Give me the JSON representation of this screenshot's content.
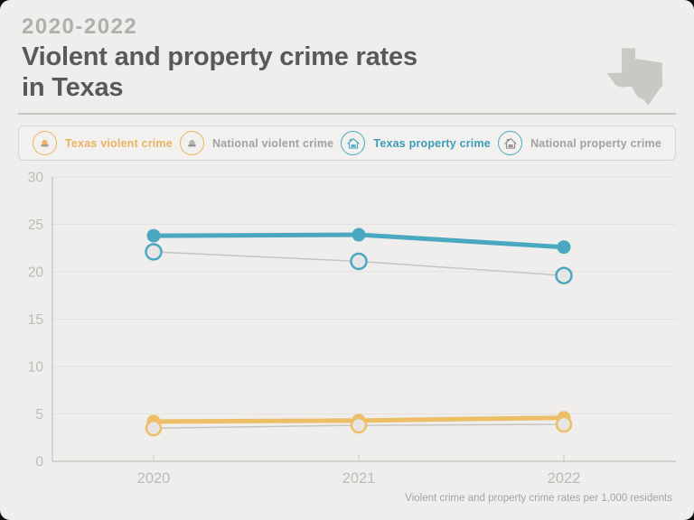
{
  "header": {
    "eyebrow": "2020-2022",
    "title": "Violent and property crime rates in Texas"
  },
  "legend": {
    "items": [
      {
        "label": "Texas violent crime",
        "icon": "siren-icon",
        "circle_color": "#e8b45f",
        "icon_color": "#ecb75e",
        "icon_accent": "#a3988a",
        "text_color": "#e8b45f"
      },
      {
        "label": "National violent crime",
        "icon": "siren-icon",
        "circle_color": "#e8b45f",
        "icon_color": "#b5b3b0",
        "icon_accent": "#8f8d8a",
        "text_color": "#a3a2a0"
      },
      {
        "label": "Texas property crime",
        "icon": "house-icon",
        "circle_color": "#4aa9c0",
        "icon_color": "#4aa9c0",
        "icon_accent": "#4aa9c0",
        "text_color": "#3a9cb5"
      },
      {
        "label": "National property crime",
        "icon": "house-icon",
        "circle_color": "#4aa9c0",
        "icon_color": "#8b8a88",
        "icon_accent": "#8b8a88",
        "text_color": "#a3a2a0"
      }
    ]
  },
  "chart_data": {
    "type": "line",
    "title": "Violent and property crime rates in Texas",
    "x": [
      "2020",
      "2021",
      "2022"
    ],
    "series": [
      {
        "name": "Texas property crime",
        "values": [
          23.8,
          23.9,
          22.6
        ],
        "line_color": "#4aa9c0",
        "line_width": 5,
        "dot_fill": "#4aa9c0",
        "dot_stroke": "none",
        "dot_stroke_width": 0,
        "dot_radius": 7.5
      },
      {
        "name": "National property crime",
        "values": [
          22.1,
          21.1,
          19.6
        ],
        "line_color": "#c7c5c2",
        "line_width": 1.5,
        "dot_fill": "#e7e6e4",
        "dot_stroke": "#4aa9c0",
        "dot_stroke_width": 2.5,
        "dot_radius": 8.5
      },
      {
        "name": "Texas violent crime",
        "values": [
          4.2,
          4.3,
          4.6
        ],
        "line_color": "#ecbf67",
        "line_width": 5,
        "dot_fill": "#ecbf67",
        "dot_stroke": "none",
        "dot_stroke_width": 0,
        "dot_radius": 7.5
      },
      {
        "name": "National violent crime",
        "values": [
          3.5,
          3.8,
          3.9
        ],
        "line_color": "#c7c5c2",
        "line_width": 1.5,
        "dot_fill": "#e7e6e4",
        "dot_stroke": "#ecbf67",
        "dot_stroke_width": 2.5,
        "dot_radius": 8
      }
    ],
    "ylim": [
      0,
      30
    ],
    "yticks": [
      0,
      5,
      10,
      15,
      20,
      25,
      30
    ],
    "grid": true,
    "legend_position": "top",
    "caption": "Violent crime and property crime rates per 1,000 residents",
    "colors": {
      "grid": "#e3e2df",
      "axis": "#c9c8c5",
      "tick_label": "#bcbbb8"
    }
  }
}
